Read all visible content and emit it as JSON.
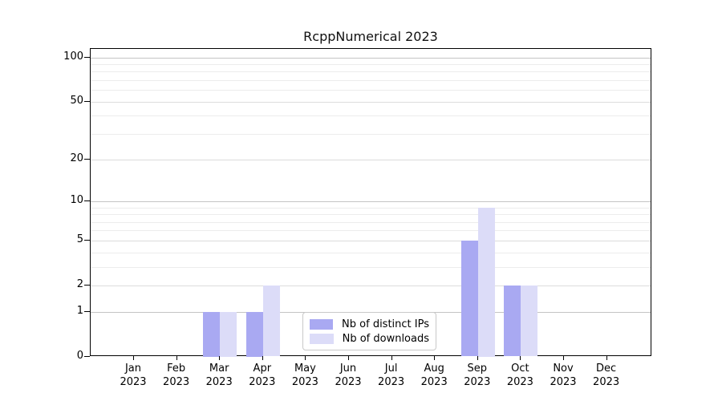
{
  "chart_data": {
    "type": "bar",
    "title": "RcppNumerical 2023",
    "months": [
      "Jan",
      "Feb",
      "Mar",
      "Apr",
      "May",
      "Jun",
      "Jul",
      "Aug",
      "Sep",
      "Oct",
      "Nov",
      "Dec"
    ],
    "year": "2023",
    "series": [
      {
        "name": "Nb of distinct IPs",
        "color": "#a9a9f2",
        "values": [
          0,
          0,
          1,
          1,
          0,
          0,
          0,
          0,
          5,
          2,
          0,
          0
        ]
      },
      {
        "name": "Nb of downloads",
        "color": "#dcdcf8",
        "values": [
          0,
          0,
          1,
          2,
          0,
          0,
          0,
          0,
          9,
          2,
          0,
          0
        ]
      }
    ],
    "y_axis": {
      "scale": "log1p",
      "ticks": [
        0,
        1,
        2,
        5,
        10,
        20,
        50,
        100
      ],
      "minor_gridlines": [
        3,
        4,
        6,
        7,
        8,
        9,
        30,
        40,
        60,
        70,
        80,
        90
      ],
      "range": [
        0,
        115
      ]
    },
    "xlabel": "",
    "ylabel": "",
    "grid": true,
    "legend_position": "lower-center",
    "colors": {
      "major_grid": "#c4c4c4",
      "mid_grid": "#dcdcdc",
      "minor_grid": "#ececec",
      "axis": "#000000",
      "background": "#ffffff"
    }
  }
}
